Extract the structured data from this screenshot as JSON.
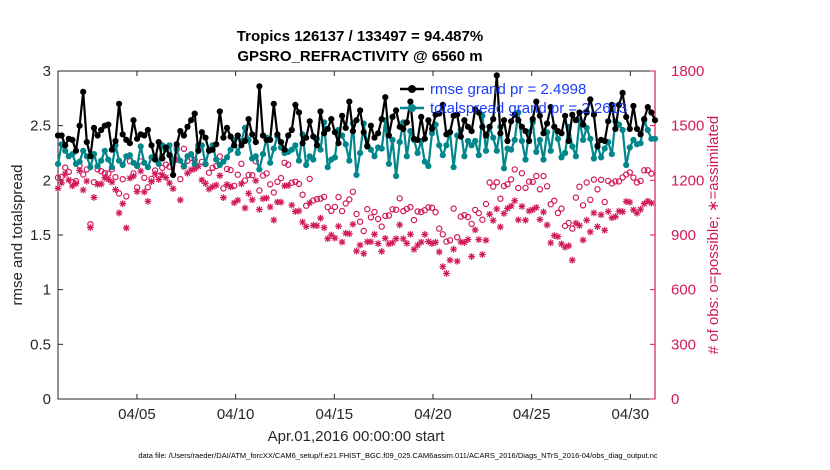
{
  "chart_data": {
    "type": "line",
    "title_line1": "Tropics 126137 / 133497 = 94.487%",
    "title_line2": "GPSRO_REFRACTIVITY @ 6560 m",
    "xlabel": "Apr.01,2016 00:00:00 start",
    "ylabel_left": "rmse and totalspread",
    "ylabel_right": "# of obs: o=possible; ∗=assimilated",
    "x_range_days": [
      1,
      31.25
    ],
    "ylim_left": [
      0,
      3
    ],
    "ylim_right": [
      0,
      1800
    ],
    "x_tick_positions": [
      5,
      10,
      15,
      20,
      25,
      30
    ],
    "x_tick_labels": [
      "04/05",
      "04/10",
      "04/15",
      "04/20",
      "04/25",
      "04/30"
    ],
    "y_left_ticks": [
      0,
      0.5,
      1,
      1.5,
      2,
      2.5,
      3
    ],
    "y_left_tick_labels": [
      "0",
      "0.5",
      "1",
      "1.5",
      "2",
      "2.5",
      "3"
    ],
    "y_right_ticks": [
      0,
      300,
      600,
      900,
      1200,
      1500,
      1800
    ],
    "y_right_tick_labels": [
      "0",
      "300",
      "600",
      "900",
      "1200",
      "1500",
      "1800"
    ],
    "legend": [
      "rmse grand pr = 2.4998",
      "totalspread grand pr = 2.2613"
    ],
    "footer": "data file: /Users/raeder/DAI/ATM_forcXX/CAM6_setup/f.e21.FHIST_BGC.f09_025.CAM6assim.011/ACARS_2016/Diags_NTrS_2016-04/obs_diag_output.nc",
    "colors": {
      "rmse": "#000000",
      "spread": "#00868b",
      "obs": "#d11a5c",
      "legend_text": "#1a3cff"
    },
    "series": [
      {
        "name": "rmse",
        "values": [
          2.41,
          2.41,
          2.32,
          2.38,
          2.37,
          2.27,
          2.5,
          2.81,
          2.35,
          2.22,
          2.48,
          2.41,
          2.46,
          2.5,
          2.51,
          2.28,
          2.36,
          2.7,
          2.42,
          2.37,
          2.34,
          2.55,
          2.38,
          2.42,
          2.41,
          2.46,
          2.32,
          2.19,
          2.35,
          2.2,
          2.3,
          2.23,
          2.05,
          2.33,
          2.45,
          2.41,
          2.49,
          2.55,
          2.61,
          2.27,
          2.44,
          2.39,
          2.27,
          2.28,
          2.33,
          2.63,
          2.39,
          2.48,
          2.4,
          2.32,
          2.41,
          2.32,
          2.36,
          2.56,
          2.42,
          2.35,
          2.86,
          2.41,
          2.37,
          2.37,
          2.7,
          2.42,
          2.35,
          2.28,
          2.41,
          2.46,
          2.69,
          2.62,
          2.34,
          2.39,
          2.54,
          2.4,
          2.32,
          2.63,
          2.43,
          2.47,
          2.56,
          2.44,
          2.34,
          2.59,
          2.48,
          2.72,
          2.45,
          2.55,
          2.64,
          2.44,
          2.31,
          2.5,
          2.39,
          2.43,
          2.56,
          2.76,
          2.41,
          2.58,
          2.64,
          2.49,
          2.47,
          2.53,
          2.72,
          2.38,
          2.37,
          2.58,
          2.38,
          2.55,
          2.47,
          2.6,
          2.61,
          2.69,
          2.42,
          2.44,
          2.59,
          2.6,
          2.4,
          2.55,
          2.49,
          2.45,
          2.65,
          2.62,
          2.49,
          2.41,
          2.49,
          2.56,
          2.96,
          2.43,
          2.55,
          2.36,
          2.54,
          2.6,
          2.55,
          2.49,
          2.45,
          2.36,
          2.56,
          2.72,
          2.59,
          2.43,
          2.52,
          2.67,
          2.49,
          2.45,
          2.43,
          2.59,
          2.36,
          2.6,
          2.55,
          2.62,
          2.51,
          2.62,
          2.74,
          2.6,
          2.31,
          2.37,
          2.36,
          2.54,
          2.69,
          2.47,
          2.69,
          2.8,
          2.58,
          2.47,
          2.68,
          2.47,
          2.42,
          2.56,
          2.67,
          2.62,
          2.55
        ]
      },
      {
        "name": "totalspread",
        "values": [
          2.15,
          2.33,
          2.27,
          2.22,
          2.24,
          2.15,
          2.17,
          2.27,
          2.22,
          2.12,
          2.24,
          2.13,
          2.18,
          2.27,
          2.19,
          2.12,
          2.32,
          2.18,
          2.14,
          2.22,
          2.23,
          2.16,
          2.13,
          2.31,
          2.16,
          2.12,
          2.21,
          2.22,
          2.15,
          2.32,
          2.28,
          2.32,
          2.17,
          2.28,
          2.18,
          2.13,
          2.22,
          2.24,
          2.15,
          2.32,
          2.32,
          2.15,
          2.28,
          2.32,
          2.19,
          2.14,
          2.17,
          2.21,
          2.28,
          2.37,
          2.25,
          2.36,
          2.48,
          2.37,
          2.2,
          2.22,
          2.1,
          2.24,
          2.39,
          2.16,
          2.29,
          2.4,
          2.3,
          2.25,
          2.26,
          2.28,
          2.32,
          2.18,
          2.42,
          2.14,
          2.22,
          2.19,
          2.38,
          2.28,
          2.53,
          2.12,
          2.19,
          2.21,
          2.46,
          2.41,
          2.33,
          2.18,
          2.52,
          2.05,
          2.25,
          2.52,
          2.32,
          2.28,
          2.22,
          2.3,
          2.29,
          2.55,
          2.15,
          2.37,
          2.04,
          2.35,
          2.53,
          2.22,
          2.45,
          2.37,
          2.25,
          2.36,
          2.17,
          2.13,
          2.43,
          2.51,
          2.32,
          2.23,
          2.32,
          2.44,
          2.12,
          2.41,
          2.46,
          2.22,
          2.36,
          2.32,
          2.36,
          2.23,
          2.59,
          2.27,
          2.49,
          2.39,
          2.27,
          2.49,
          2.11,
          2.29,
          2.28,
          2.37,
          2.62,
          2.36,
          2.19,
          2.44,
          2.53,
          2.26,
          2.37,
          2.19,
          2.44,
          2.27,
          2.49,
          2.38,
          2.21,
          2.25,
          2.49,
          2.31,
          2.22,
          2.55,
          2.37,
          2.48,
          2.38,
          2.2,
          2.32,
          2.21,
          2.29,
          2.35,
          2.24,
          2.54,
          2.51,
          2.46,
          2.14,
          2.3,
          2.37,
          2.33,
          2.34,
          2.55,
          2.46,
          2.38,
          2.38
        ]
      },
      {
        "name": "obs_possible",
        "values": [
          1215,
          1219,
          1270,
          1247,
          1190,
          1196,
          1281,
          1232,
          1260,
          959,
          1190,
          1260,
          1250,
          1239,
          1237,
          1261,
          1218,
          1128,
          1206,
          1112,
          1305,
          1238,
          1161,
          1304,
          1214,
          1162,
          1208,
          1254,
          1225,
          1268,
          1286,
          1275,
          1306,
          1377,
          1206,
          1373,
          1307,
          1323,
          1312,
          1378,
          1301,
          1289,
          1242,
          1269,
          1278,
          1331,
          1156,
          1262,
          1256,
          1170,
          1231,
          1291,
          1199,
          1229,
          1228,
          1305,
          1144,
          1226,
          1238,
          1178,
          1133,
          1192,
          1212,
          1296,
          1286,
          1187,
          1192,
          1180,
          1121,
          1061,
          1208,
          1090,
          1097,
          1100,
          1109,
          1053,
          1033,
          1054,
          1108,
          1031,
          1073,
          1095,
          1137,
          1015,
          973,
          922,
          1042,
          997,
          1026,
          988,
          946,
          1005,
          1007,
          1041,
          1039,
          1101,
          1031,
          1043,
          1053,
          982,
          1029,
          1026,
          1036,
          1052,
          1050,
          1025,
          935,
          904,
          864,
          871,
          1045,
          888,
          1001,
          1009,
          999,
          961,
          1038,
          1020,
          984,
          1070,
          1188,
          1166,
          1190,
          1099,
          1169,
          1178,
          1205,
          1260,
          1158,
          1239,
          1159,
          1193,
          1192,
          1224,
          1151,
          1223,
          1167,
          1069,
          1088,
          1021,
          1045,
          950,
          966,
          935,
          1105,
          1165,
          1063,
          1188,
          1093,
          1204,
          1151,
          1203,
          1081,
          1197,
          1183,
          1194,
          1194,
          1216,
          1232,
          1243,
          1215,
          1188,
          1197,
          1255,
          1255,
          1237
        ]
      },
      {
        "name": "obs_assimilated",
        "values": [
          1156,
          1186,
          1235,
          1202,
          1170,
          1182,
          1254,
          1147,
          1196,
          941,
          1106,
          1178,
          1180,
          1214,
          1205,
          1190,
          1149,
          1021,
          1072,
          939,
          1212,
          1223,
          1138,
          1251,
          1136,
          1085,
          1193,
          1237,
          1205,
          1231,
          1215,
          1185,
          1154,
          1314,
          1092,
          1275,
          1239,
          1257,
          1263,
          1277,
          1202,
          1183,
          1152,
          1165,
          1174,
          1226,
          1105,
          1177,
          1164,
          1077,
          1091,
          1181,
          1048,
          1128,
          1093,
          1198,
          1040,
          1099,
          1103,
          1054,
          982,
          1081,
          1080,
          1170,
          1172,
          1064,
          1029,
          1032,
          971,
          946,
          1076,
          953,
          951,
          992,
          940,
          880,
          900,
          883,
          948,
          861,
          910,
          907,
          959,
          812,
          845,
          798,
          863,
          863,
          904,
          853,
          810,
          882,
          851,
          857,
          880,
          956,
          879,
          854,
          904,
          821,
          844,
          861,
          903,
          864,
          853,
          860,
          807,
          726,
          689,
          762,
          822,
          756,
          862,
          859,
          875,
          782,
          928,
          875,
          793,
          871,
          1014,
          980,
          1043,
          944,
          1018,
          1046,
          1059,
          1088,
          983,
          1057,
          981,
          1032,
          1039,
          1051,
          985,
          1026,
          955,
          857,
          897,
          891,
          851,
          833,
          841,
          762,
          965,
          952,
          872,
          981,
          917,
          1021,
          946,
          1011,
          926,
          1029,
          994,
          1001,
          1031,
          1028,
          1084,
          1080,
          1038,
          1020,
          1041,
          1072,
          1086,
          1075
        ]
      }
    ]
  }
}
